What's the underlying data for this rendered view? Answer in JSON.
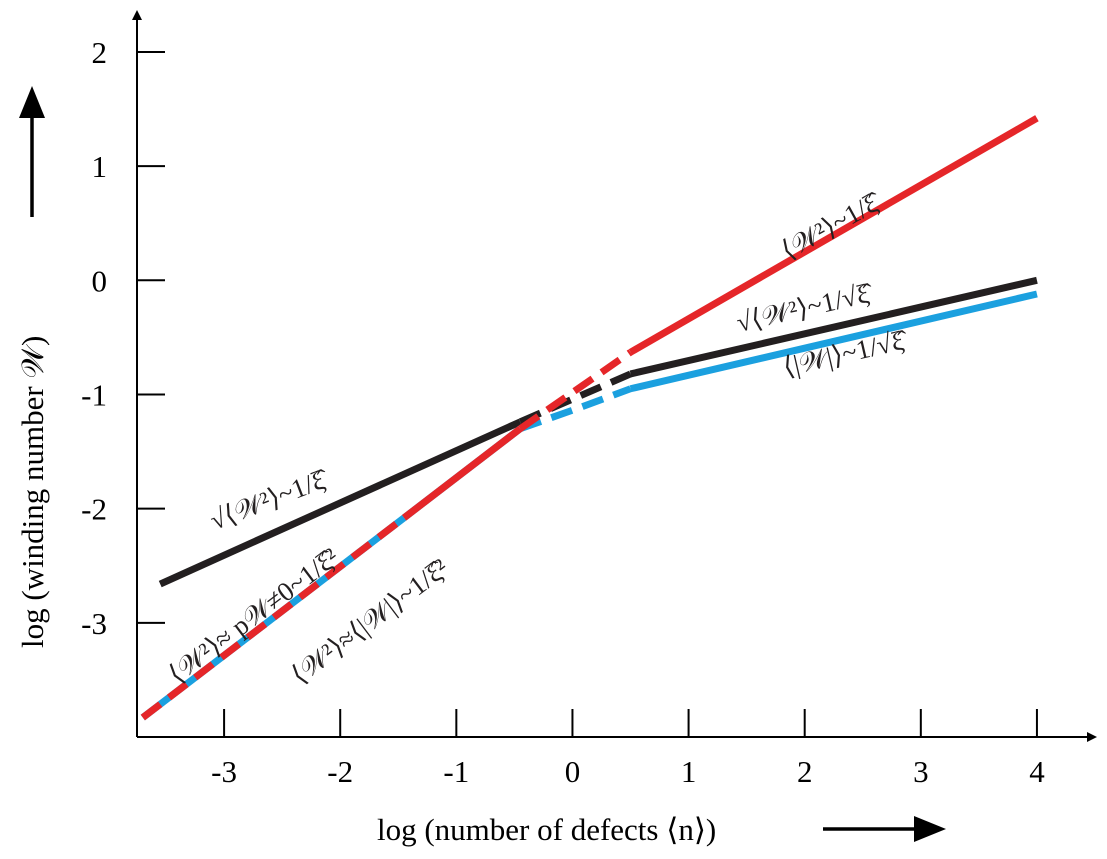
{
  "chart_data": {
    "type": "line",
    "xlabel": "log (number of defects ⟨n⟩)",
    "ylabel": "log (winding number 𝒲)",
    "xlim": [
      -3.75,
      4.5
    ],
    "ylim": [
      -4.0,
      2.35
    ],
    "x_ticks": [
      -3,
      -2,
      -1,
      0,
      1,
      2,
      3,
      4
    ],
    "x_tick_labels": [
      "-3",
      "-2",
      "-1",
      "0",
      "1",
      "2",
      "3",
      "4"
    ],
    "y_ticks": [
      -3,
      -2,
      -1,
      0,
      1,
      2
    ],
    "y_tick_labels": [
      "-3",
      "-2",
      "-1",
      "0",
      "1",
      "2"
    ],
    "grid": false,
    "colors": {
      "red": "#e52629",
      "black": "#231f20",
      "blue": "#1ba0df"
    },
    "series": [
      {
        "color": "red",
        "segments": [
          {
            "style": "dashed-blue-red",
            "points": [
              [
                -3.7,
                -3.83
              ],
              [
                -1.45,
                -2.08
              ]
            ]
          },
          {
            "style": "solid-on-blue",
            "points": [
              [
                -1.45,
                -2.08
              ],
              [
                -0.45,
                -1.3
              ]
            ]
          },
          {
            "style": "dashed",
            "points": [
              [
                -0.45,
                -1.3
              ],
              [
                0.5,
                -0.63
              ]
            ]
          },
          {
            "style": "solid",
            "points": [
              [
                0.5,
                -0.63
              ],
              [
                4.0,
                1.42
              ]
            ]
          }
        ]
      },
      {
        "color": "black",
        "segments": [
          {
            "style": "solid",
            "points": [
              [
                -3.55,
                -2.66
              ],
              [
                -0.45,
                -1.24
              ]
            ]
          },
          {
            "style": "dashed",
            "points": [
              [
                -0.45,
                -1.24
              ],
              [
                0.5,
                -0.82
              ]
            ]
          },
          {
            "style": "solid",
            "points": [
              [
                0.5,
                -0.82
              ],
              [
                4.0,
                0.0
              ]
            ]
          }
        ]
      },
      {
        "color": "blue",
        "segments": [
          {
            "style": "solid-under-red",
            "points": [
              [
                -3.7,
                -3.83
              ],
              [
                -1.45,
                -2.08
              ]
            ]
          },
          {
            "style": "solid",
            "points": [
              [
                -1.45,
                -2.08
              ],
              [
                -0.45,
                -1.3
              ]
            ]
          },
          {
            "style": "dashed",
            "points": [
              [
                -0.45,
                -1.3
              ],
              [
                0.05,
                -1.12
              ],
              [
                0.5,
                -0.95
              ]
            ]
          },
          {
            "style": "solid",
            "points": [
              [
                0.5,
                -0.95
              ],
              [
                4.0,
                -0.12
              ]
            ]
          }
        ]
      }
    ],
    "annotations": [
      {
        "text": "⟨𝒲²⟩~1/ξ̂",
        "x": 2.25,
        "y": 0.4,
        "angle": -29
      },
      {
        "text": "√⟨𝒲²⟩~1/√ξ̂",
        "x": 2.0,
        "y": -0.32,
        "angle": -13
      },
      {
        "text": "⟨|𝒲|⟩~1/√ξ̂",
        "x": 2.35,
        "y": -0.72,
        "angle": -13
      },
      {
        "text": "√⟨𝒲²⟩~1/ξ̂",
        "x": -2.6,
        "y": -2.0,
        "angle": -21
      },
      {
        "text": "⟨𝒲²⟩≈ p𝒲≠0~1/ξ̂²",
        "x": -2.7,
        "y": -3.0,
        "angle": -37
      },
      {
        "text": "⟨𝒲²⟩≈⟨|𝒲|⟩~1/ξ̂²",
        "x": -1.7,
        "y": -3.05,
        "angle": -37
      }
    ]
  }
}
